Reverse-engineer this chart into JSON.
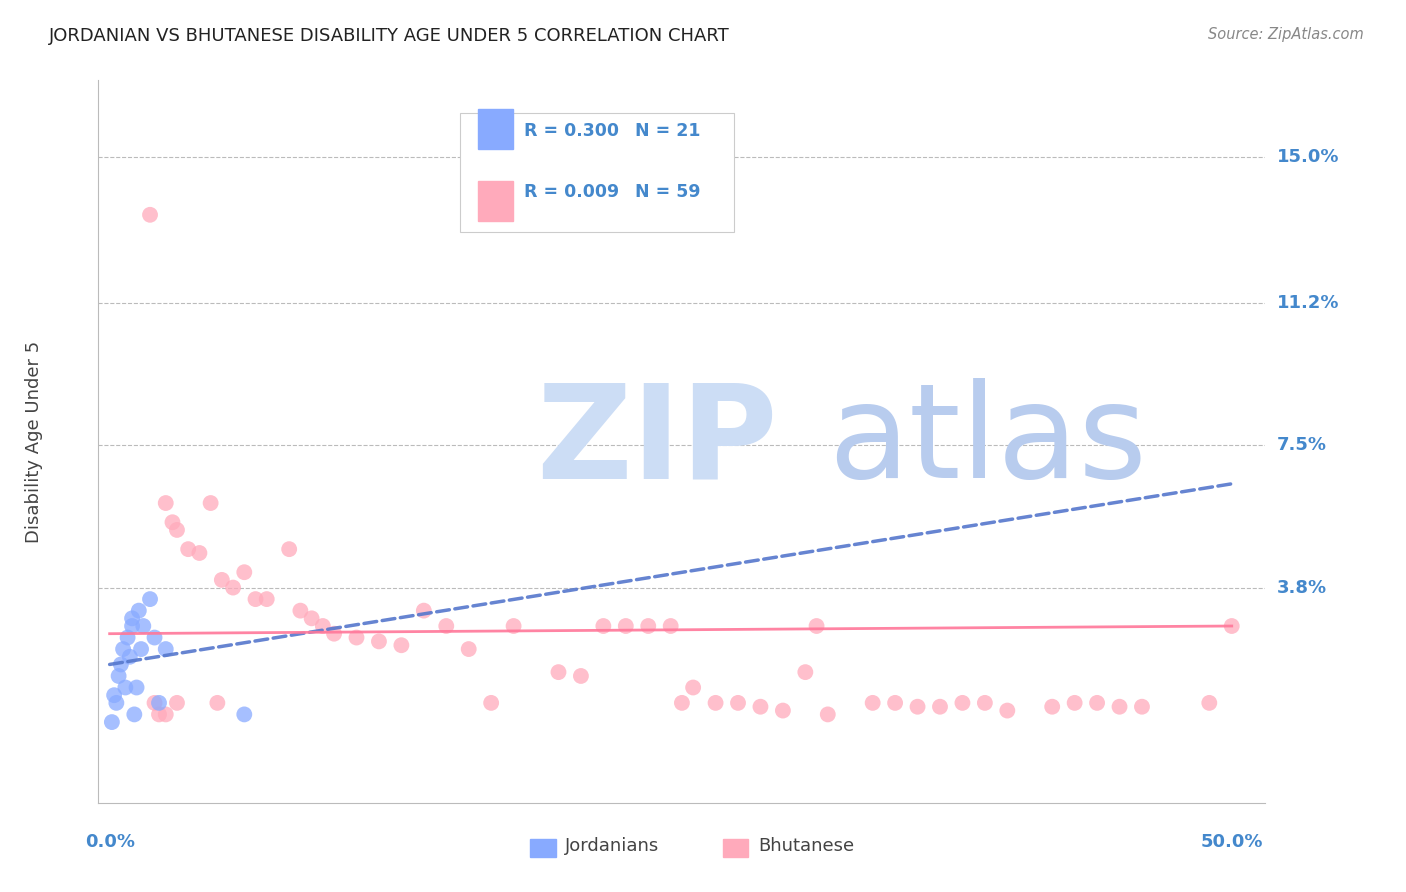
{
  "title": "JORDANIAN VS BHUTANESE DISABILITY AGE UNDER 5 CORRELATION CHART",
  "source": "Source: ZipAtlas.com",
  "ylabel": "Disability Age Under 5",
  "ytick_labels": [
    "15.0%",
    "11.2%",
    "7.5%",
    "3.8%"
  ],
  "ytick_values": [
    0.15,
    0.112,
    0.075,
    0.038
  ],
  "xmin": 0.0,
  "xmax": 0.5,
  "ymin": -0.018,
  "ymax": 0.17,
  "jordan_color": "#88aaff",
  "bhutan_color": "#ffaabb",
  "jordan_line_color": "#5577cc",
  "bhutan_line_color": "#ff7799",
  "background_color": "#ffffff",
  "grid_color": "#cccccc",
  "axis_label_color": "#4488cc",
  "title_color": "#222222",
  "watermark_zip_color": "#cce0ff",
  "watermark_atlas_color": "#aaccee",
  "jordan_x": [
    0.001,
    0.002,
    0.003,
    0.004,
    0.005,
    0.006,
    0.007,
    0.008,
    0.009,
    0.01,
    0.01,
    0.011,
    0.012,
    0.013,
    0.014,
    0.015,
    0.018,
    0.02,
    0.022,
    0.025,
    0.06
  ],
  "jordan_y": [
    0.003,
    0.01,
    0.008,
    0.015,
    0.018,
    0.022,
    0.012,
    0.025,
    0.02,
    0.028,
    0.03,
    0.005,
    0.012,
    0.032,
    0.022,
    0.028,
    0.035,
    0.025,
    0.008,
    0.022,
    0.005
  ],
  "bhutan_x": [
    0.018,
    0.02,
    0.022,
    0.025,
    0.025,
    0.028,
    0.03,
    0.03,
    0.035,
    0.04,
    0.045,
    0.048,
    0.05,
    0.055,
    0.06,
    0.065,
    0.07,
    0.08,
    0.085,
    0.09,
    0.095,
    0.1,
    0.11,
    0.12,
    0.13,
    0.14,
    0.15,
    0.16,
    0.17,
    0.18,
    0.2,
    0.21,
    0.22,
    0.23,
    0.24,
    0.25,
    0.255,
    0.26,
    0.27,
    0.28,
    0.29,
    0.3,
    0.31,
    0.315,
    0.32,
    0.34,
    0.35,
    0.36,
    0.37,
    0.38,
    0.39,
    0.4,
    0.42,
    0.43,
    0.44,
    0.45,
    0.46,
    0.49,
    0.5
  ],
  "bhutan_y": [
    0.135,
    0.008,
    0.005,
    0.06,
    0.005,
    0.055,
    0.053,
    0.008,
    0.048,
    0.047,
    0.06,
    0.008,
    0.04,
    0.038,
    0.042,
    0.035,
    0.035,
    0.048,
    0.032,
    0.03,
    0.028,
    0.026,
    0.025,
    0.024,
    0.023,
    0.032,
    0.028,
    0.022,
    0.008,
    0.028,
    0.016,
    0.015,
    0.028,
    0.028,
    0.028,
    0.028,
    0.008,
    0.012,
    0.008,
    0.008,
    0.007,
    0.006,
    0.016,
    0.028,
    0.005,
    0.008,
    0.008,
    0.007,
    0.007,
    0.008,
    0.008,
    0.006,
    0.007,
    0.008,
    0.008,
    0.007,
    0.007,
    0.008,
    0.028
  ],
  "jordan_trend_x": [
    0.0,
    0.5
  ],
  "jordan_trend_y": [
    0.018,
    0.065
  ],
  "bhutan_trend_x": [
    0.0,
    0.5
  ],
  "bhutan_trend_y": [
    0.026,
    0.028
  ]
}
